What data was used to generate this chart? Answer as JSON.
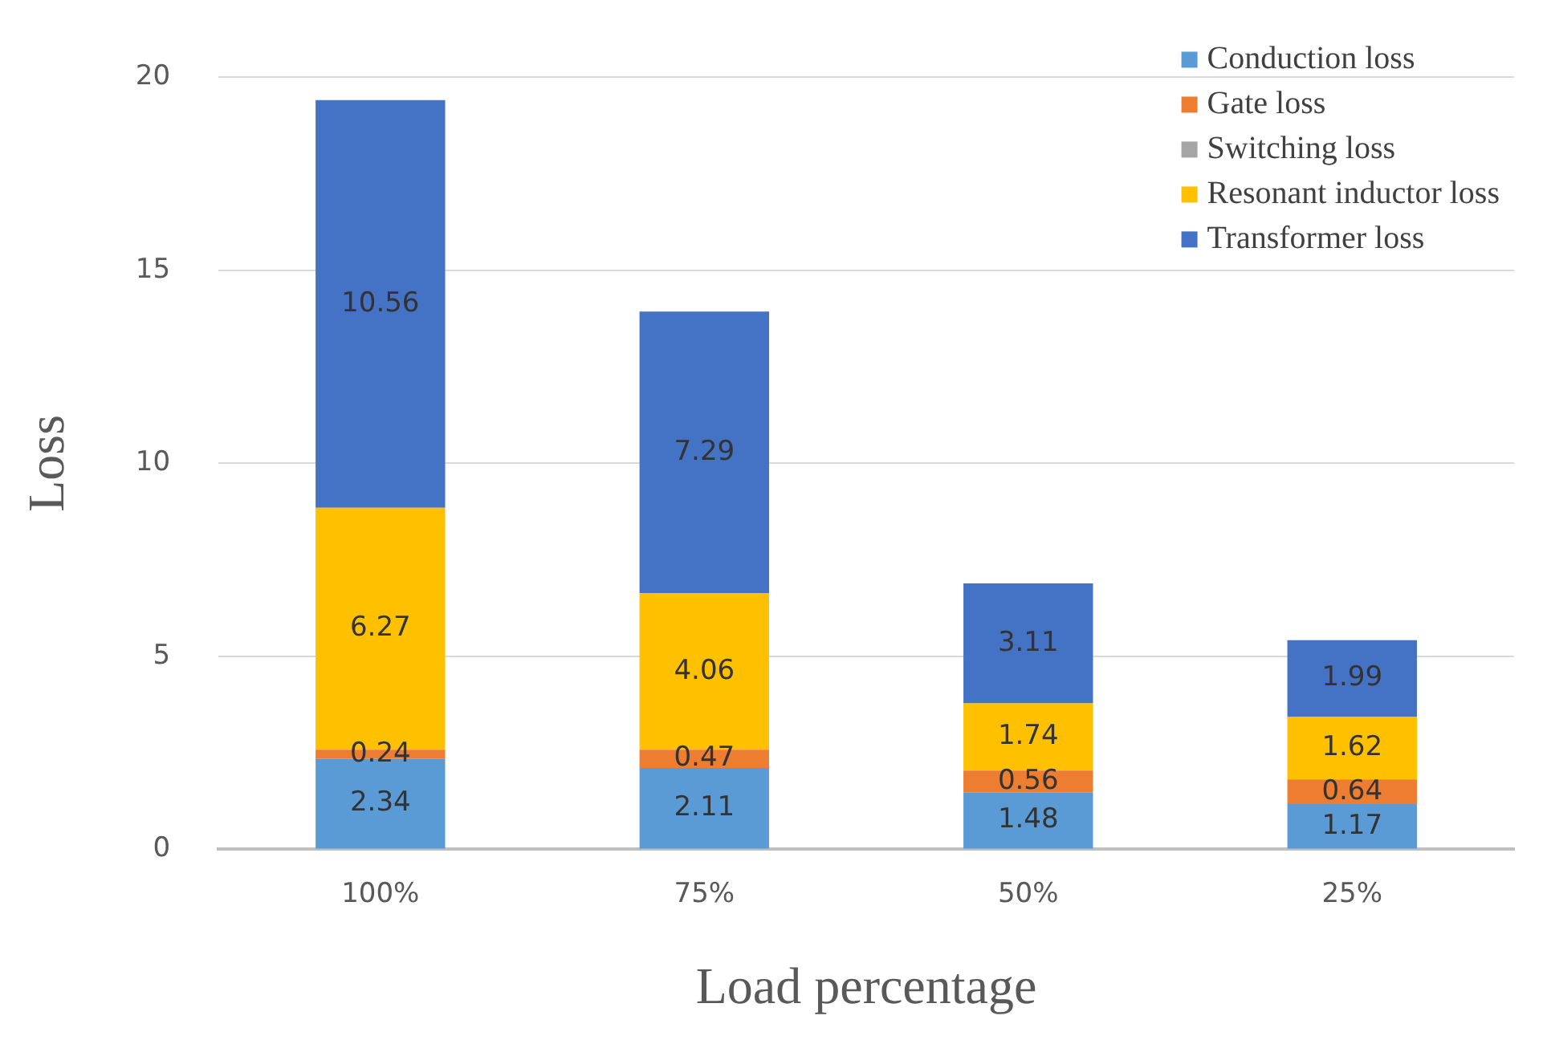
{
  "chart_data": {
    "type": "bar",
    "stacked": true,
    "xlabel": "Load percentage",
    "ylabel": "Loss",
    "categories": [
      "100%",
      "75%",
      "50%",
      "25%"
    ],
    "series": [
      {
        "name": "Conduction loss",
        "color": "#5b9bd5",
        "values": [
          2.34,
          2.11,
          1.48,
          1.17
        ],
        "value_labels": [
          "2.34",
          "2.11",
          "1.48",
          "1.17"
        ]
      },
      {
        "name": "Gate loss",
        "color": "#ed7d31",
        "values": [
          0.24,
          0.47,
          0.56,
          0.64
        ],
        "value_labels": [
          "0.24",
          "0.47",
          "0.56",
          "0.64"
        ]
      },
      {
        "name": "Switching loss",
        "color": "#a5a5a5",
        "values": [
          0,
          0,
          0,
          0
        ],
        "value_labels": [
          null,
          null,
          null,
          null
        ]
      },
      {
        "name": "Resonant inductor loss",
        "color": "#ffc000",
        "values": [
          6.27,
          4.06,
          1.74,
          1.62
        ],
        "value_labels": [
          "6.27",
          "4.06",
          "1.74",
          "1.62"
        ]
      },
      {
        "name": "Transformer loss",
        "color": "#4472c4",
        "values": [
          10.56,
          7.29,
          3.11,
          1.99
        ],
        "value_labels": [
          "10.56",
          "7.29",
          "3.11",
          "1.99"
        ]
      }
    ],
    "ylim": [
      0,
      20
    ],
    "yticks": [
      0,
      5,
      10,
      15,
      20
    ],
    "grid": "y",
    "legend": "top right"
  }
}
